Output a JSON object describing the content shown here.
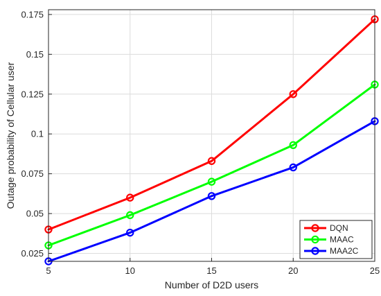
{
  "chart_data": {
    "type": "line",
    "title": "",
    "xlabel": "Number of D2D users",
    "ylabel": "Outage probability of Cellular user",
    "x": [
      5,
      10,
      15,
      20,
      25
    ],
    "xlim": [
      5,
      25
    ],
    "ylim": [
      0.02,
      0.178
    ],
    "xticks": [
      5,
      10,
      15,
      20,
      25
    ],
    "xtick_labels": [
      "5",
      "10",
      "15",
      "20",
      "25"
    ],
    "yticks": [
      0.025,
      0.05,
      0.075,
      0.1,
      0.125,
      0.15,
      0.175
    ],
    "ytick_labels": [
      "0.025",
      "0.05",
      "0.075",
      "0.1",
      "0.125",
      "0.15",
      "0.175"
    ],
    "grid": true,
    "legend_position": "bottom-right",
    "series": [
      {
        "name": "DQN",
        "color": "#ff0000",
        "values": [
          0.04,
          0.06,
          0.083,
          0.125,
          0.172
        ]
      },
      {
        "name": "MAAC",
        "color": "#00ff00",
        "values": [
          0.03,
          0.049,
          0.07,
          0.093,
          0.131
        ]
      },
      {
        "name": "MAA2C",
        "color": "#0000ff",
        "values": [
          0.02,
          0.038,
          0.061,
          0.079,
          0.108
        ]
      }
    ]
  }
}
